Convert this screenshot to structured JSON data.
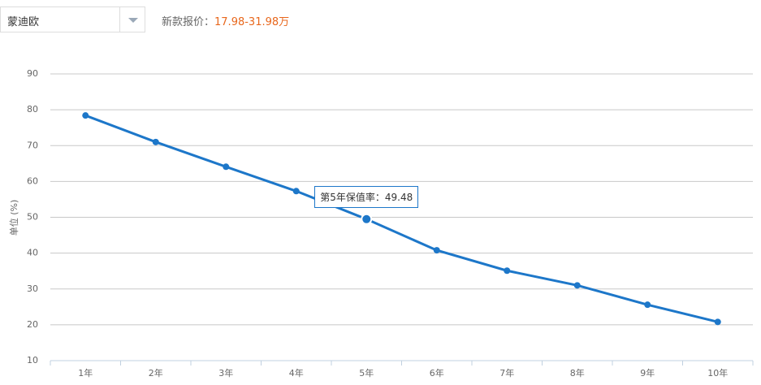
{
  "header": {
    "model": "蒙迪欧",
    "price_label": "新款报价：",
    "price": "17.98-31.98万"
  },
  "chart_data": {
    "type": "line",
    "y_label": "单位 (%)",
    "categories": [
      "1年",
      "2年",
      "3年",
      "4年",
      "5年",
      "6年",
      "7年",
      "8年",
      "9年",
      "10年"
    ],
    "series": [
      {
        "name": "保值率",
        "color": "#1d77c9",
        "values": [
          78.4,
          71.0,
          64.1,
          57.3,
          49.48,
          40.8,
          35.1,
          31.0,
          25.6,
          20.8
        ]
      }
    ],
    "ylim": [
      10,
      90
    ],
    "yticks": [
      10,
      20,
      30,
      40,
      50,
      60,
      70,
      80,
      90
    ],
    "grid": true,
    "tooltip": {
      "label": "第5年保值率：",
      "index": 4
    }
  }
}
